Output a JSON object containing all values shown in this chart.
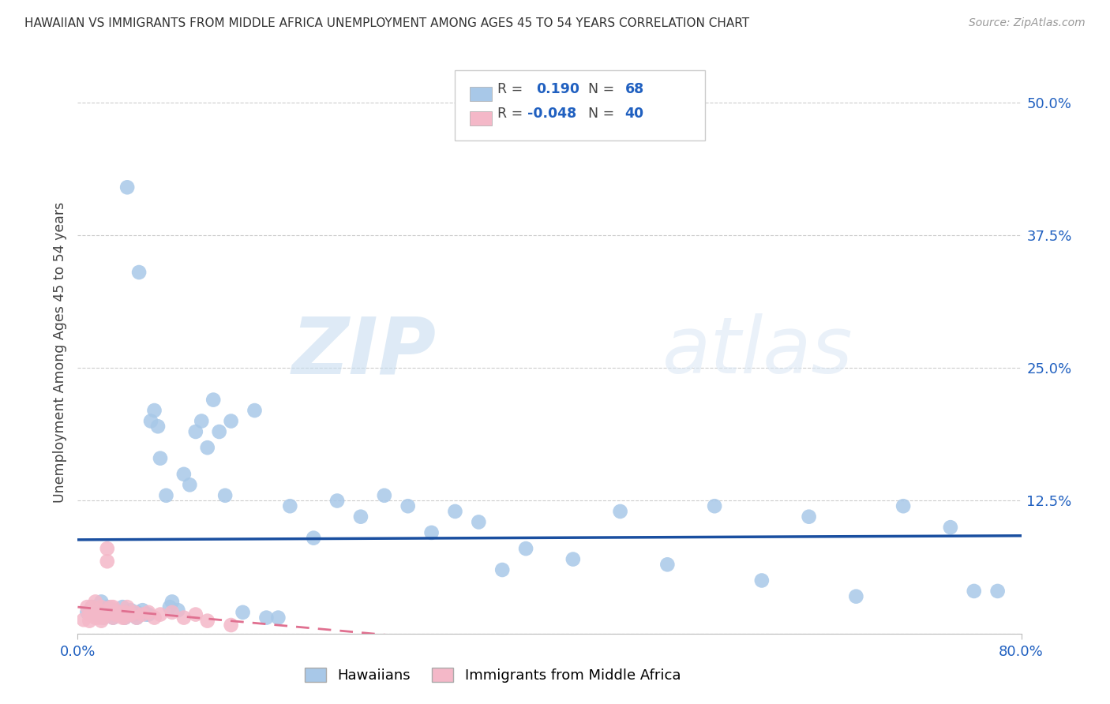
{
  "title": "HAWAIIAN VS IMMIGRANTS FROM MIDDLE AFRICA UNEMPLOYMENT AMONG AGES 45 TO 54 YEARS CORRELATION CHART",
  "source": "Source: ZipAtlas.com",
  "ylabel": "Unemployment Among Ages 45 to 54 years",
  "xlim": [
    0.0,
    0.8
  ],
  "ylim": [
    0.0,
    0.53
  ],
  "xticks": [
    0.0,
    0.8
  ],
  "xticklabels": [
    "0.0%",
    "80.0%"
  ],
  "yticks": [
    0.0,
    0.125,
    0.25,
    0.375,
    0.5
  ],
  "yticklabels": [
    "",
    "12.5%",
    "25.0%",
    "37.5%",
    "50.0%"
  ],
  "hawaiian_R": 0.19,
  "hawaiian_N": 68,
  "immigrant_R": -0.048,
  "immigrant_N": 40,
  "hawaiian_color": "#a8c8e8",
  "immigrant_color": "#f4b8c8",
  "hawaiian_line_color": "#1a4fa0",
  "immigrant_line_color": "#e07090",
  "watermark_zip": "ZIP",
  "watermark_atlas": "atlas",
  "hawaiian_x": [
    0.008,
    0.012,
    0.015,
    0.018,
    0.02,
    0.022,
    0.025,
    0.025,
    0.028,
    0.03,
    0.03,
    0.032,
    0.035,
    0.038,
    0.04,
    0.04,
    0.042,
    0.045,
    0.048,
    0.05,
    0.05,
    0.052,
    0.055,
    0.058,
    0.06,
    0.062,
    0.065,
    0.068,
    0.07,
    0.075,
    0.078,
    0.08,
    0.085,
    0.09,
    0.095,
    0.1,
    0.105,
    0.11,
    0.115,
    0.12,
    0.125,
    0.13,
    0.14,
    0.15,
    0.16,
    0.17,
    0.18,
    0.2,
    0.22,
    0.24,
    0.26,
    0.28,
    0.3,
    0.32,
    0.34,
    0.36,
    0.38,
    0.42,
    0.46,
    0.5,
    0.54,
    0.58,
    0.62,
    0.66,
    0.7,
    0.74,
    0.76,
    0.78
  ],
  "hawaiian_y": [
    0.02,
    0.025,
    0.018,
    0.022,
    0.03,
    0.015,
    0.025,
    0.018,
    0.02,
    0.015,
    0.022,
    0.02,
    0.018,
    0.025,
    0.02,
    0.015,
    0.42,
    0.022,
    0.018,
    0.02,
    0.015,
    0.34,
    0.022,
    0.018,
    0.018,
    0.2,
    0.21,
    0.195,
    0.165,
    0.13,
    0.025,
    0.03,
    0.022,
    0.15,
    0.14,
    0.19,
    0.2,
    0.175,
    0.22,
    0.19,
    0.13,
    0.2,
    0.02,
    0.21,
    0.015,
    0.015,
    0.12,
    0.09,
    0.125,
    0.11,
    0.13,
    0.12,
    0.095,
    0.115,
    0.105,
    0.06,
    0.08,
    0.07,
    0.115,
    0.065,
    0.12,
    0.05,
    0.11,
    0.035,
    0.12,
    0.1,
    0.04,
    0.04
  ],
  "immigrant_x": [
    0.005,
    0.008,
    0.01,
    0.01,
    0.012,
    0.012,
    0.015,
    0.015,
    0.015,
    0.018,
    0.018,
    0.02,
    0.02,
    0.02,
    0.022,
    0.022,
    0.025,
    0.025,
    0.028,
    0.03,
    0.03,
    0.03,
    0.032,
    0.035,
    0.038,
    0.04,
    0.04,
    0.042,
    0.045,
    0.048,
    0.05,
    0.055,
    0.06,
    0.065,
    0.07,
    0.08,
    0.09,
    0.1,
    0.11,
    0.13
  ],
  "immigrant_y": [
    0.013,
    0.025,
    0.018,
    0.012,
    0.02,
    0.025,
    0.018,
    0.03,
    0.015,
    0.022,
    0.015,
    0.018,
    0.025,
    0.012,
    0.015,
    0.02,
    0.068,
    0.08,
    0.025,
    0.02,
    0.015,
    0.025,
    0.018,
    0.02,
    0.015,
    0.02,
    0.015,
    0.025,
    0.018,
    0.02,
    0.015,
    0.018,
    0.02,
    0.015,
    0.018,
    0.02,
    0.015,
    0.018,
    0.012,
    0.008
  ]
}
